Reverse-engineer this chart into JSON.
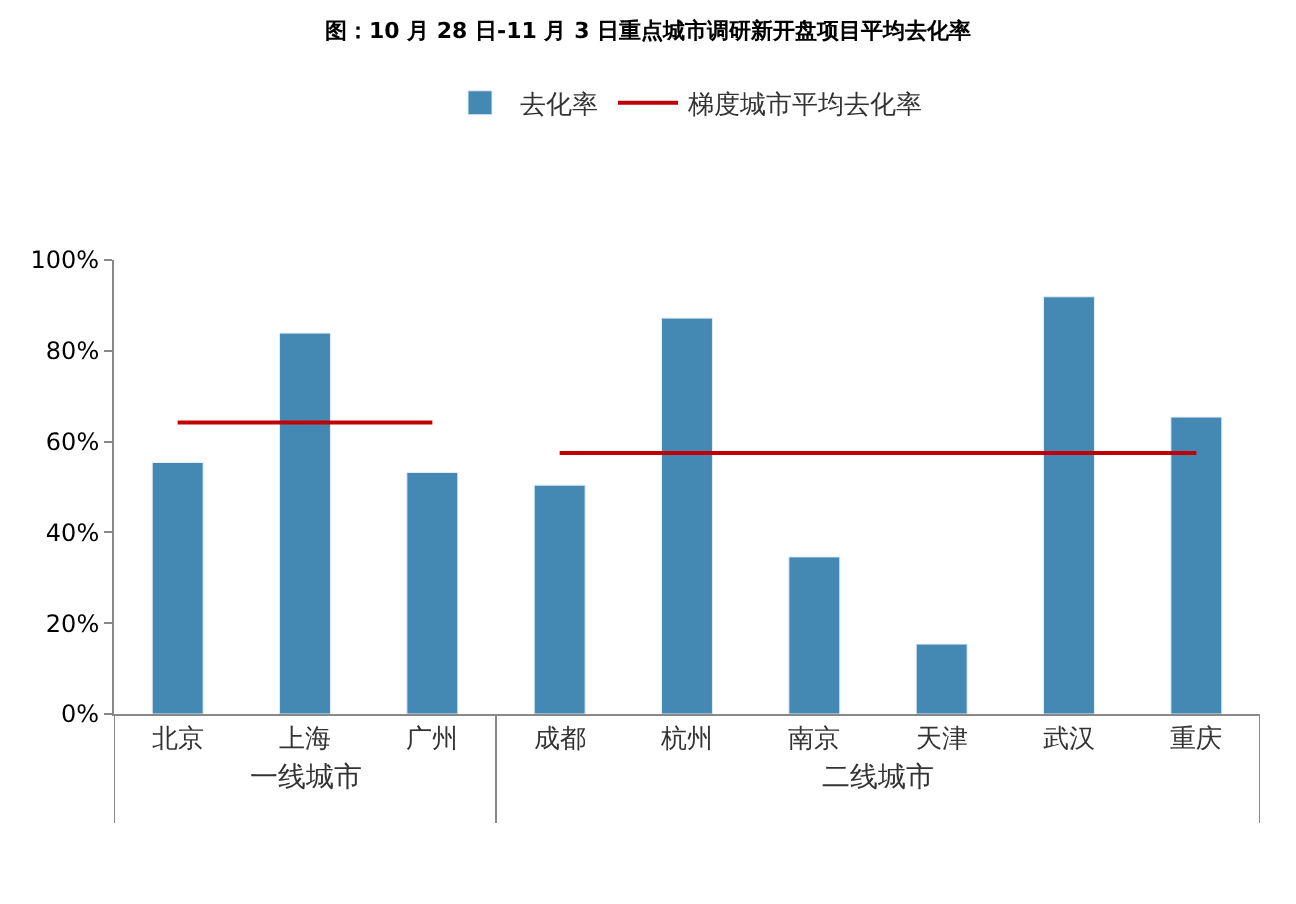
{
  "chart_data": {
    "type": "bar",
    "title": "图：10 月 28 日-11 月 3 日重点城市调研新开盘项目平均去化率",
    "categories": [
      "北京",
      "上海",
      "广州",
      "成都",
      "杭州",
      "南京",
      "天津",
      "武汉",
      "重庆"
    ],
    "series": [
      {
        "name": "去化率",
        "color": "#4389b3",
        "values": [
          55.4,
          83.9,
          53.2,
          50.4,
          87.2,
          34.6,
          15.4,
          91.9,
          65.4
        ]
      },
      {
        "name": "梯度城市平均去化率",
        "type": "line",
        "color": "#c00000",
        "values": [
          64.2,
          64.2,
          64.2,
          null,
          null,
          null,
          null,
          null,
          null
        ]
      },
      {
        "type": "line",
        "color": "#c00000",
        "values": [
          null,
          null,
          null,
          57.5,
          57.5,
          57.5,
          57.5,
          57.5,
          57.5
        ]
      }
    ],
    "annotations": [
      "一线城市",
      "二线城市"
    ],
    "ylim": [
      0,
      100
    ],
    "yticks": [
      {
        "value": 0,
        "label": "0%"
      },
      {
        "value": 20,
        "label": "20%"
      },
      {
        "value": 40,
        "label": "40%"
      },
      {
        "value": 60,
        "label": "60%"
      },
      {
        "value": 80,
        "label": "80%"
      },
      {
        "value": 100,
        "label": "100%"
      }
    ],
    "legend": "top",
    "marker": "none",
    "line_style": "solid"
  }
}
